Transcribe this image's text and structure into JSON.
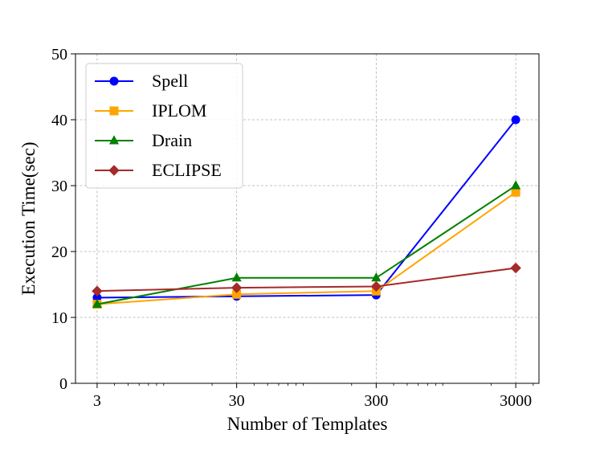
{
  "chart_data": {
    "type": "line",
    "xscale": "log",
    "categories": [
      "3",
      "30",
      "300",
      "3000"
    ],
    "x": [
      3,
      30,
      300,
      3000
    ],
    "xlabel": "Number of Templates",
    "ylabel": "Execution Time(sec)",
    "ylim": [
      0,
      50
    ],
    "yticks": [
      0,
      10,
      20,
      30,
      40,
      50
    ],
    "grid": true,
    "legend_position": "top-left",
    "series": [
      {
        "name": "Spell",
        "values": [
          13.0,
          13.2,
          13.4,
          40.0
        ],
        "color": "#0000ff",
        "marker": "circle"
      },
      {
        "name": "IPLOM",
        "values": [
          12.0,
          13.5,
          14.0,
          29.0
        ],
        "color": "#ffa500",
        "marker": "square"
      },
      {
        "name": "Drain",
        "values": [
          12.0,
          16.0,
          16.0,
          30.0
        ],
        "color": "#008000",
        "marker": "triangle"
      },
      {
        "name": "ECLIPSE",
        "values": [
          14.0,
          14.5,
          14.7,
          17.5
        ],
        "color": "#a52a2a",
        "marker": "diamond"
      }
    ]
  }
}
